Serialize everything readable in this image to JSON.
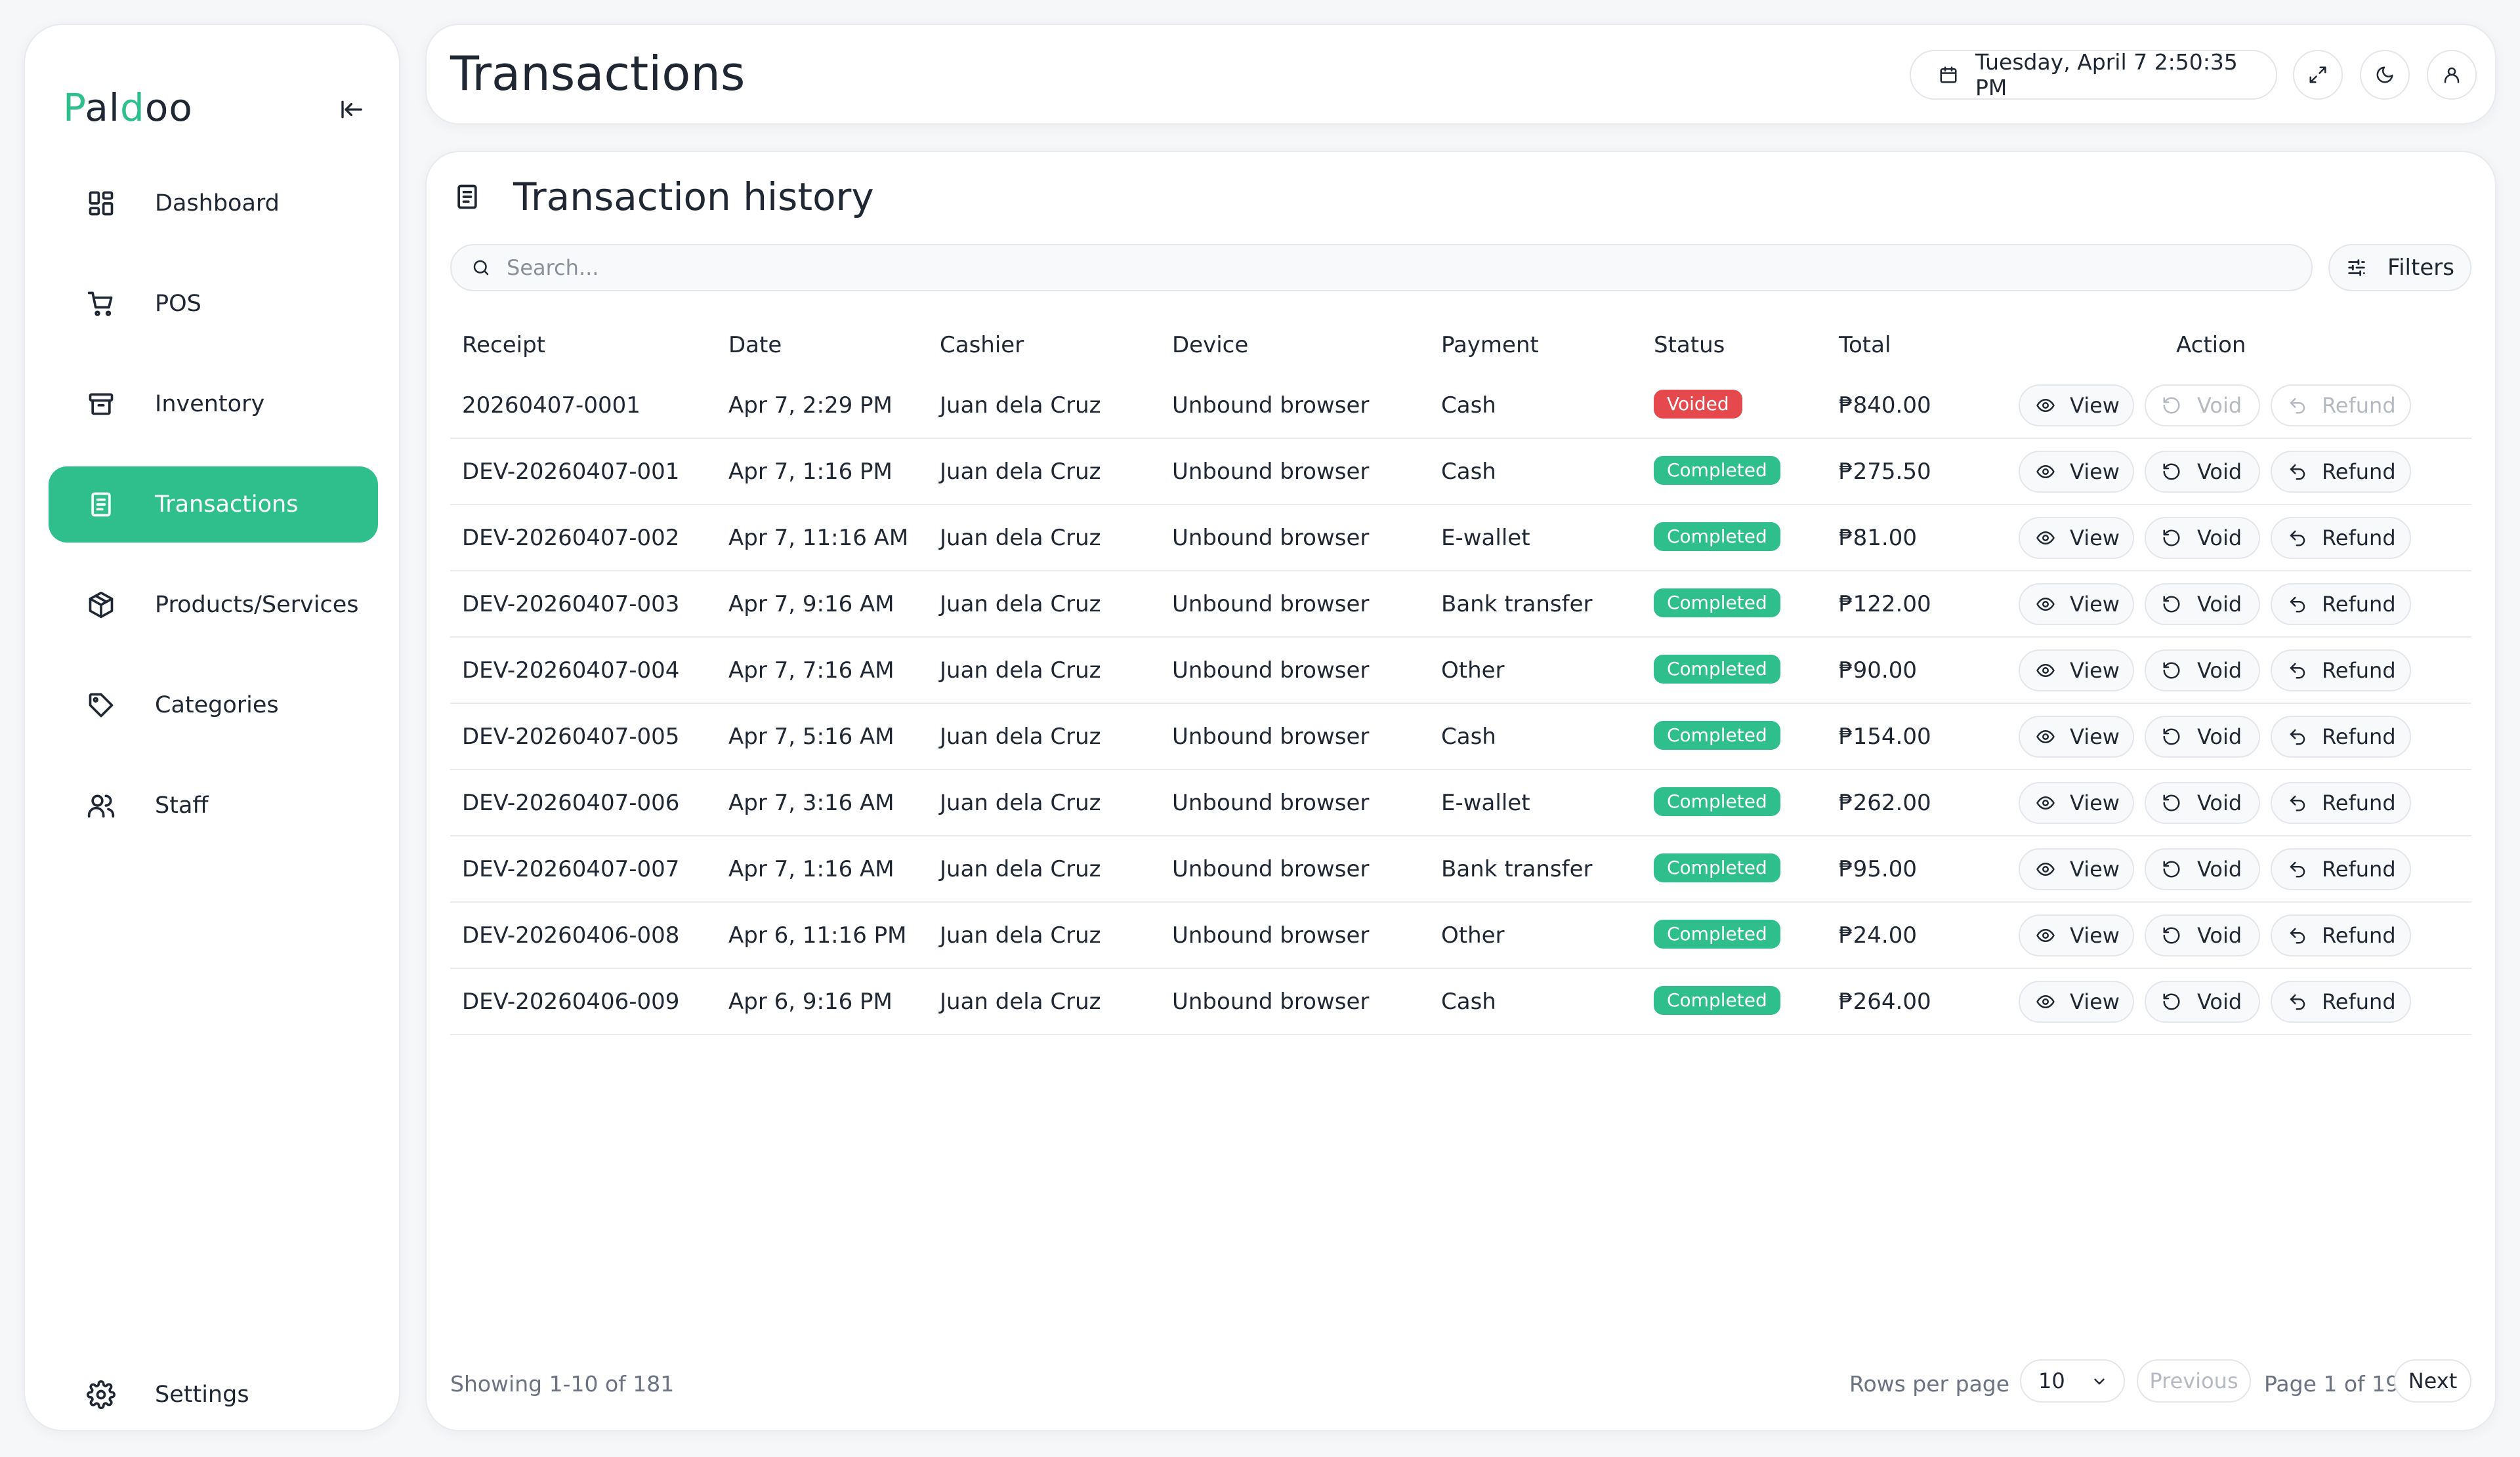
{
  "app": {
    "logo_p": "P",
    "logo_a": "al",
    "logo_d": "d",
    "logo_rest": "oo"
  },
  "sidebar": {
    "items": [
      {
        "label": "Dashboard",
        "icon": "dashboard-grid-icon"
      },
      {
        "label": "POS",
        "icon": "cart-icon"
      },
      {
        "label": "Inventory",
        "icon": "archive-box-icon"
      },
      {
        "label": "Transactions",
        "icon": "receipt-icon",
        "active": true
      },
      {
        "label": "Products/Services",
        "icon": "package-icon"
      },
      {
        "label": "Categories",
        "icon": "tag-icon"
      },
      {
        "label": "Staff",
        "icon": "users-icon"
      }
    ],
    "settings_label": "Settings"
  },
  "header": {
    "title": "Transactions",
    "datetime": "Tuesday, April 7 2:50:35 PM"
  },
  "main": {
    "section_title": "Transaction history",
    "search_placeholder": "Search...",
    "filters_label": "Filters",
    "columns": [
      "Receipt",
      "Date",
      "Cashier",
      "Device",
      "Payment",
      "Status",
      "Total",
      "Action"
    ],
    "rows": [
      {
        "receipt": "20260407-0001",
        "date": "Apr 7, 2:29 PM",
        "cashier": "Juan dela Cruz",
        "device": "Unbound browser",
        "payment": "Cash",
        "status": "Voided",
        "total": "₱840.00"
      },
      {
        "receipt": "DEV-20260407-001",
        "date": "Apr 7, 1:16 PM",
        "cashier": "Juan dela Cruz",
        "device": "Unbound browser",
        "payment": "Cash",
        "status": "Completed",
        "total": "₱275.50"
      },
      {
        "receipt": "DEV-20260407-002",
        "date": "Apr 7, 11:16 AM",
        "cashier": "Juan dela Cruz",
        "device": "Unbound browser",
        "payment": "E-wallet",
        "status": "Completed",
        "total": "₱81.00"
      },
      {
        "receipt": "DEV-20260407-003",
        "date": "Apr 7, 9:16 AM",
        "cashier": "Juan dela Cruz",
        "device": "Unbound browser",
        "payment": "Bank transfer",
        "status": "Completed",
        "total": "₱122.00"
      },
      {
        "receipt": "DEV-20260407-004",
        "date": "Apr 7, 7:16 AM",
        "cashier": "Juan dela Cruz",
        "device": "Unbound browser",
        "payment": "Other",
        "status": "Completed",
        "total": "₱90.00"
      },
      {
        "receipt": "DEV-20260407-005",
        "date": "Apr 7, 5:16 AM",
        "cashier": "Juan dela Cruz",
        "device": "Unbound browser",
        "payment": "Cash",
        "status": "Completed",
        "total": "₱154.00"
      },
      {
        "receipt": "DEV-20260407-006",
        "date": "Apr 7, 3:16 AM",
        "cashier": "Juan dela Cruz",
        "device": "Unbound browser",
        "payment": "E-wallet",
        "status": "Completed",
        "total": "₱262.00"
      },
      {
        "receipt": "DEV-20260407-007",
        "date": "Apr 7, 1:16 AM",
        "cashier": "Juan dela Cruz",
        "device": "Unbound browser",
        "payment": "Bank transfer",
        "status": "Completed",
        "total": "₱95.00"
      },
      {
        "receipt": "DEV-20260406-008",
        "date": "Apr 6, 11:16 PM",
        "cashier": "Juan dela Cruz",
        "device": "Unbound browser",
        "payment": "Other",
        "status": "Completed",
        "total": "₱24.00"
      },
      {
        "receipt": "DEV-20260406-009",
        "date": "Apr 6, 9:16 PM",
        "cashier": "Juan dela Cruz",
        "device": "Unbound browser",
        "payment": "Cash",
        "status": "Completed",
        "total": "₱264.00"
      }
    ],
    "actions": {
      "view": "View",
      "void": "Void",
      "refund": "Refund"
    }
  },
  "footer": {
    "showing": "Showing 1-10 of 181",
    "rows_per_page_label": "Rows per page",
    "rows_per_page_value": "10",
    "previous_label": "Previous",
    "page_info": "Page 1 of 19",
    "next_label": "Next"
  },
  "colors": {
    "accent": "#2fbf8c",
    "voided": "#e5484d",
    "text": "#1f2733",
    "muted": "#6b7280"
  }
}
